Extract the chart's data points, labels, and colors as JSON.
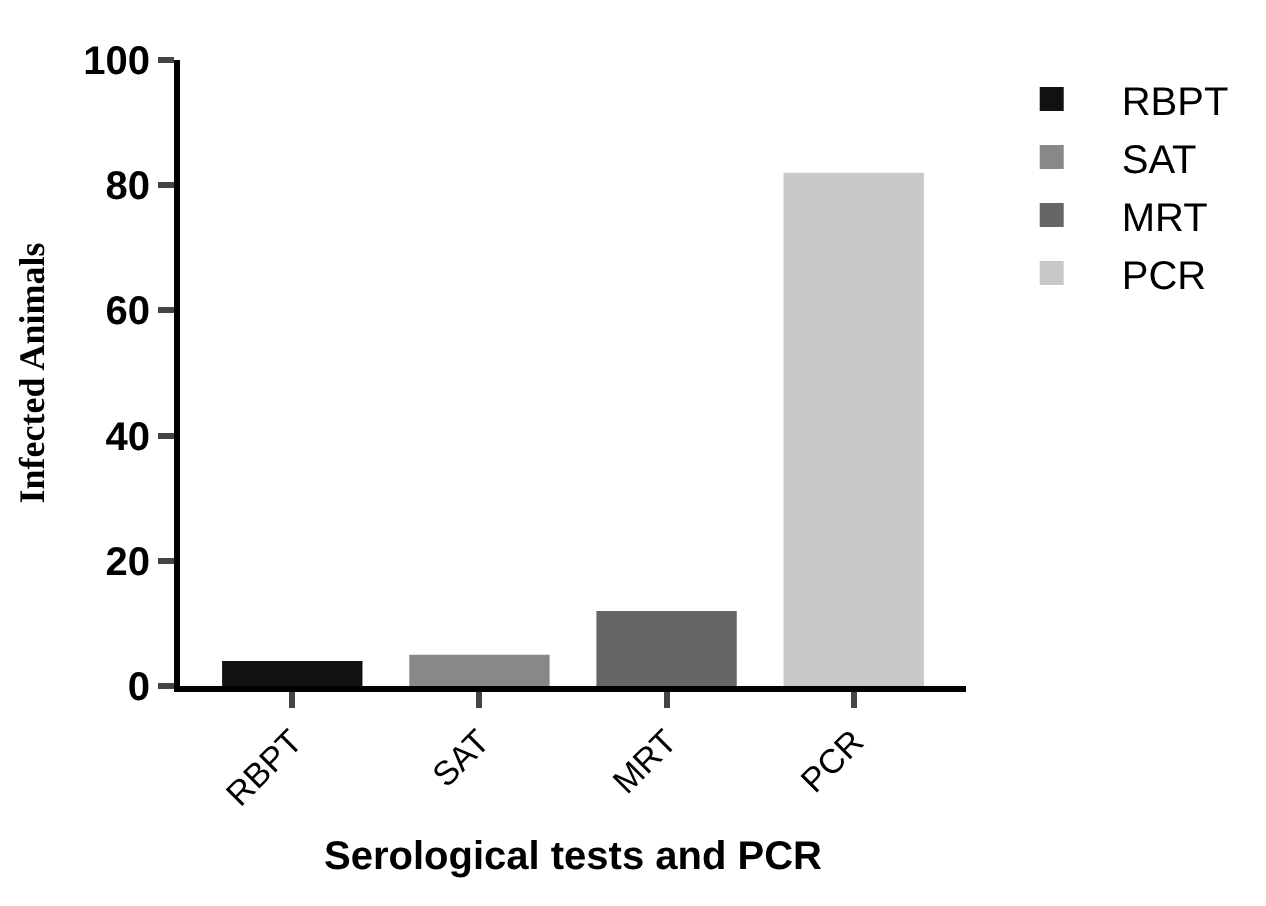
{
  "chart_data": {
    "type": "bar",
    "xlabel": "Serological tests and PCR",
    "ylabel": "Infected Animals",
    "categories": [
      "RBPT",
      "SAT",
      "MRT",
      "PCR"
    ],
    "series": [
      {
        "name": "RBPT",
        "color": "#111111",
        "values": [
          4,
          null,
          null,
          null
        ]
      },
      {
        "name": "SAT",
        "color": "#888888",
        "values": [
          null,
          5,
          null,
          null
        ]
      },
      {
        "name": "MRT",
        "color": "#666666",
        "values": [
          null,
          null,
          12,
          null
        ]
      },
      {
        "name": "PCR",
        "color": "#c8c8c8",
        "values": [
          null,
          null,
          null,
          82
        ]
      }
    ],
    "ylim": [
      0,
      100
    ],
    "yticks": [
      0,
      20,
      40,
      60,
      80,
      100
    ],
    "legend": "top right"
  }
}
